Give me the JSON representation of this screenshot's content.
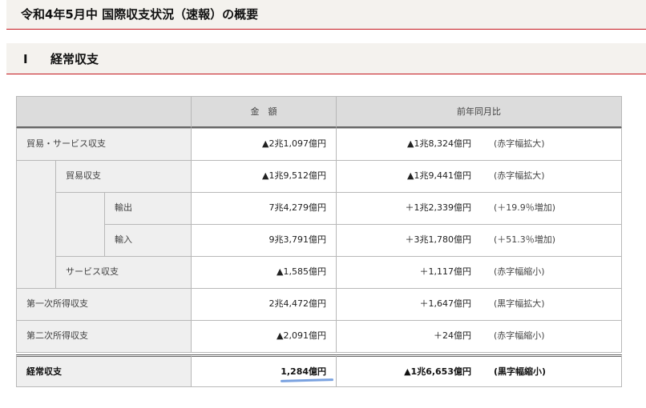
{
  "header": {
    "title": "令和4年5月中 国際収支状況（速報）の概要"
  },
  "section": {
    "number": "Ⅰ",
    "title": "経常収支"
  },
  "table": {
    "columns": [
      "",
      "金　額",
      "前年同月比"
    ],
    "rows": [
      {
        "label": "貿易・サービス収支",
        "level": 0,
        "amount": "▲2兆1,097億円",
        "change": "▲1兆8,324億円",
        "note": "(赤字幅拡大)"
      },
      {
        "label": "貿易収支",
        "level": 1,
        "amount": "▲1兆9,512億円",
        "change": "▲1兆9,441億円",
        "note": "(赤字幅拡大)"
      },
      {
        "label": "輸出",
        "level": 2,
        "amount": "7兆4,279億円",
        "change": "＋1兆2,339億円",
        "note": "(＋19.9％増加)"
      },
      {
        "label": "輸入",
        "level": 2,
        "amount": "9兆3,791億円",
        "change": "＋3兆1,780億円",
        "note": "(＋51.3％増加)"
      },
      {
        "label": "サービス収支",
        "level": 1,
        "amount": "▲1,585億円",
        "change": "＋1,117億円",
        "note": "(赤字幅縮小)"
      },
      {
        "label": "第一次所得収支",
        "level": 0,
        "amount": "2兆4,472億円",
        "change": "＋1,647億円",
        "note": "(黒字幅拡大)"
      },
      {
        "label": "第二次所得収支",
        "level": 0,
        "amount": "▲2,091億円",
        "change": "＋24億円",
        "note": "(赤字幅縮小)"
      },
      {
        "label": "経常収支",
        "level": 0,
        "amount": "1,284億円",
        "change": "▲1兆6,653億円",
        "note": "(黒字幅縮小)",
        "bold": true
      }
    ]
  },
  "colors": {
    "accent_line": "#c4161c",
    "bar_bg": "#f4f2ee",
    "header_bg": "#dcdcdc",
    "label_bg": "#efefef"
  }
}
